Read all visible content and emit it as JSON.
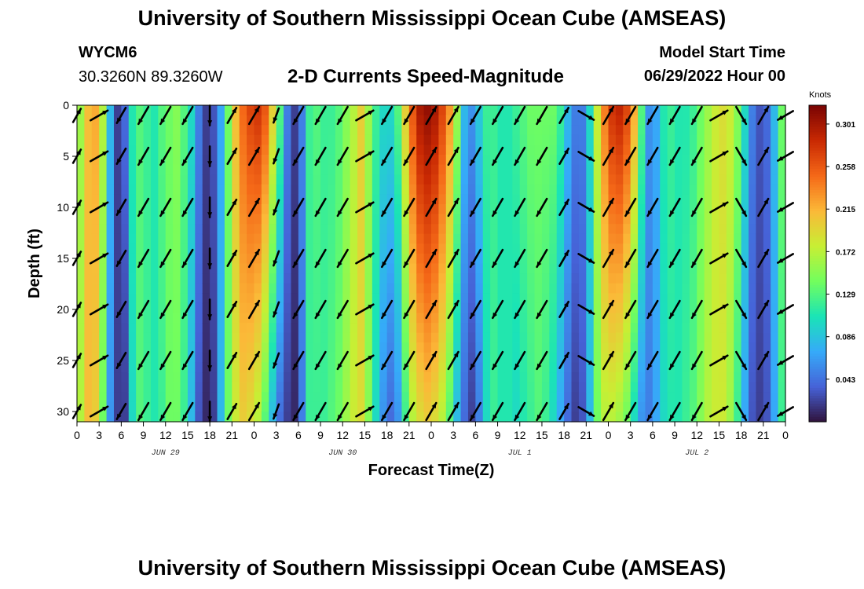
{
  "header": {
    "title": "University of Southern Mississippi Ocean Cube (AMSEAS)",
    "station_id": "WYCM6",
    "station_location": "30.3260N  89.3260W",
    "plot_title": "2-D Currents Speed-Magnitude",
    "start_label": "Model Start Time",
    "start_value": "06/29/2022 Hour 00"
  },
  "footer": {
    "title": "University of Southern Mississippi Ocean Cube (AMSEAS)"
  },
  "colors": {
    "scale": [
      "#30123b",
      "#4662d7",
      "#36aaf9",
      "#1ae4b6",
      "#72fe5e",
      "#c7ef34",
      "#fbb938",
      "#f56918",
      "#c92903",
      "#7a0403"
    ]
  },
  "chart_data": {
    "type": "heatmap",
    "xlabel": "Forecast Time(Z)",
    "ylabel": "Depth (ft)",
    "x_range_hours": [
      0,
      96
    ],
    "y_range_ft": [
      0,
      31
    ],
    "x_ticks": [
      0,
      3,
      6,
      9,
      12,
      15,
      18,
      21,
      24,
      27,
      30,
      33,
      36,
      39,
      42,
      45,
      48,
      51,
      54,
      57,
      60,
      63,
      66,
      69,
      72,
      75,
      78,
      81,
      84,
      87,
      90,
      93,
      96
    ],
    "x_tick_labels": [
      "0",
      "3",
      "6",
      "9",
      "12",
      "15",
      "18",
      "21",
      "0",
      "3",
      "6",
      "9",
      "12",
      "15",
      "18",
      "21",
      "0",
      "3",
      "6",
      "9",
      "12",
      "15",
      "18",
      "21",
      "0",
      "3",
      "6",
      "9",
      "12",
      "15",
      "18",
      "21",
      "0"
    ],
    "y_ticks": [
      0,
      5,
      10,
      15,
      20,
      25,
      30
    ],
    "y_tick_labels": [
      "0",
      "5",
      "10",
      "15",
      "20",
      "25",
      "30"
    ],
    "day_labels": [
      {
        "hour": 12,
        "text": "JUN 29"
      },
      {
        "hour": 36,
        "text": "JUN 30"
      },
      {
        "hour": 60,
        "text": "JUL 1"
      },
      {
        "hour": 84,
        "text": "JUL 2"
      }
    ],
    "colorbar": {
      "unit": "Knots",
      "min": 0.0,
      "max": 0.32,
      "tick_values": [
        0.043,
        0.086,
        0.129,
        0.172,
        0.215,
        0.258,
        0.301
      ],
      "tick_labels": [
        "0.043",
        "0.086",
        "0.129",
        "0.172",
        "0.215",
        "0.258",
        "0.301"
      ]
    },
    "speed_profile": {
      "hours": [
        0,
        1,
        2,
        3,
        4,
        5,
        6,
        7,
        8,
        9,
        10,
        11,
        12,
        13,
        14,
        15,
        16,
        17,
        18,
        19,
        20,
        21,
        22,
        23,
        24,
        25,
        26,
        27,
        28,
        29,
        30,
        31,
        32,
        33,
        34,
        35,
        36,
        37,
        38,
        39,
        40,
        41,
        42,
        43,
        44,
        45,
        46,
        47,
        48,
        49,
        50,
        51,
        52,
        53,
        54,
        55,
        56,
        57,
        58,
        59,
        60,
        61,
        62,
        63,
        64,
        65,
        66,
        67,
        68,
        69,
        70,
        71,
        72,
        73,
        74,
        75,
        76,
        77,
        78,
        79,
        80,
        81,
        82,
        83,
        84,
        85,
        86,
        87,
        88,
        89,
        90,
        91,
        92,
        93,
        94,
        95,
        96
      ],
      "surface_knots": [
        0.16,
        0.21,
        0.22,
        0.17,
        0.08,
        0.02,
        0.04,
        0.11,
        0.13,
        0.12,
        0.11,
        0.13,
        0.14,
        0.15,
        0.13,
        0.1,
        0.05,
        0.02,
        0.03,
        0.07,
        0.14,
        0.21,
        0.25,
        0.27,
        0.28,
        0.26,
        0.2,
        0.13,
        0.05,
        0.02,
        0.05,
        0.12,
        0.13,
        0.12,
        0.12,
        0.13,
        0.15,
        0.17,
        0.2,
        0.16,
        0.12,
        0.1,
        0.1,
        0.13,
        0.2,
        0.26,
        0.3,
        0.31,
        0.3,
        0.27,
        0.23,
        0.16,
        0.08,
        0.06,
        0.09,
        0.12,
        0.12,
        0.11,
        0.11,
        0.12,
        0.13,
        0.14,
        0.14,
        0.14,
        0.14,
        0.12,
        0.08,
        0.05,
        0.05,
        0.1,
        0.18,
        0.24,
        0.28,
        0.29,
        0.27,
        0.22,
        0.13,
        0.06,
        0.07,
        0.11,
        0.12,
        0.11,
        0.11,
        0.12,
        0.14,
        0.16,
        0.18,
        0.19,
        0.18,
        0.15,
        0.1,
        0.05,
        0.03,
        0.04,
        0.08,
        0.14,
        0.18
      ],
      "bottom_knots": [
        0.17,
        0.21,
        0.2,
        0.14,
        0.06,
        0.02,
        0.02,
        0.1,
        0.13,
        0.12,
        0.11,
        0.12,
        0.14,
        0.14,
        0.12,
        0.08,
        0.03,
        0.01,
        0.02,
        0.08,
        0.14,
        0.18,
        0.2,
        0.19,
        0.17,
        0.13,
        0.08,
        0.04,
        0.02,
        0.01,
        0.05,
        0.12,
        0.12,
        0.12,
        0.13,
        0.14,
        0.16,
        0.18,
        0.19,
        0.15,
        0.1,
        0.06,
        0.04,
        0.06,
        0.12,
        0.17,
        0.19,
        0.2,
        0.19,
        0.17,
        0.13,
        0.08,
        0.04,
        0.02,
        0.05,
        0.1,
        0.12,
        0.11,
        0.11,
        0.1,
        0.11,
        0.12,
        0.13,
        0.12,
        0.1,
        0.07,
        0.04,
        0.02,
        0.03,
        0.08,
        0.14,
        0.17,
        0.17,
        0.16,
        0.14,
        0.1,
        0.06,
        0.05,
        0.07,
        0.1,
        0.11,
        0.11,
        0.12,
        0.13,
        0.15,
        0.17,
        0.18,
        0.18,
        0.16,
        0.12,
        0.07,
        0.03,
        0.02,
        0.03,
        0.07,
        0.12,
        0.15
      ]
    },
    "vectors": {
      "hours": [
        0,
        3,
        6,
        9,
        12,
        15,
        18,
        21,
        24,
        27,
        30,
        33,
        36,
        39,
        42,
        45,
        48,
        51,
        54,
        57,
        60,
        63,
        66,
        69,
        72,
        75,
        78,
        81,
        84,
        87,
        90,
        93,
        96
      ],
      "depths_ft": [
        1,
        5,
        10,
        15,
        20,
        25,
        30
      ],
      "direction_deg": [
        30,
        60,
        210,
        210,
        210,
        210,
        180,
        30,
        30,
        200,
        210,
        210,
        210,
        60,
        210,
        210,
        30,
        30,
        210,
        210,
        210,
        210,
        30,
        120,
        30,
        210,
        210,
        210,
        210,
        60,
        150,
        30,
        240
      ],
      "length_scale": [
        0.7,
        0.9,
        0.8,
        0.9,
        0.9,
        0.9,
        0.9,
        0.8,
        0.9,
        0.7,
        0.9,
        0.9,
        0.9,
        0.9,
        0.9,
        0.9,
        0.9,
        0.9,
        0.9,
        0.9,
        0.9,
        0.9,
        0.8,
        0.8,
        0.9,
        0.9,
        0.9,
        0.9,
        0.9,
        0.9,
        0.9,
        0.9,
        0.8
      ]
    }
  }
}
